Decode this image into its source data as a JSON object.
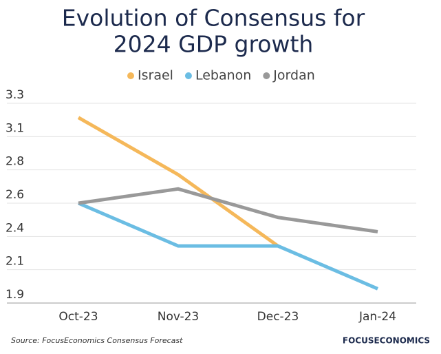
{
  "chart_data": {
    "type": "line",
    "title": [
      "Evolution of Consensus for",
      "2024 GDP growth"
    ],
    "categories": [
      "Oct-23",
      "Nov-23",
      "Dec-23",
      "Jan-24"
    ],
    "series": [
      {
        "name": "Israel",
        "color": "#f5b85a",
        "values": [
          3.2,
          2.8,
          2.3,
          null
        ]
      },
      {
        "name": "Lebanon",
        "color": "#6bbde3",
        "values": [
          2.6,
          2.3,
          2.3,
          2.0
        ]
      },
      {
        "name": "Jordan",
        "color": "#999999",
        "values": [
          2.6,
          2.7,
          2.5,
          2.4
        ]
      }
    ],
    "ylim": [
      1.9,
      3.3
    ],
    "yticks": [
      1.9,
      {
        "value": 2.1333,
        "label": "2.1"
      },
      {
        "value": 2.3667,
        "label": "2.4"
      },
      2.6,
      {
        "value": 2.8333,
        "label": "2.8"
      },
      {
        "value": 3.0667,
        "label": "3.1"
      },
      3.3
    ],
    "grid": true,
    "legend": "top",
    "source": "Source: FocusEconomics Consensus Forecast",
    "logo": "FOCUSECONOMICS"
  }
}
